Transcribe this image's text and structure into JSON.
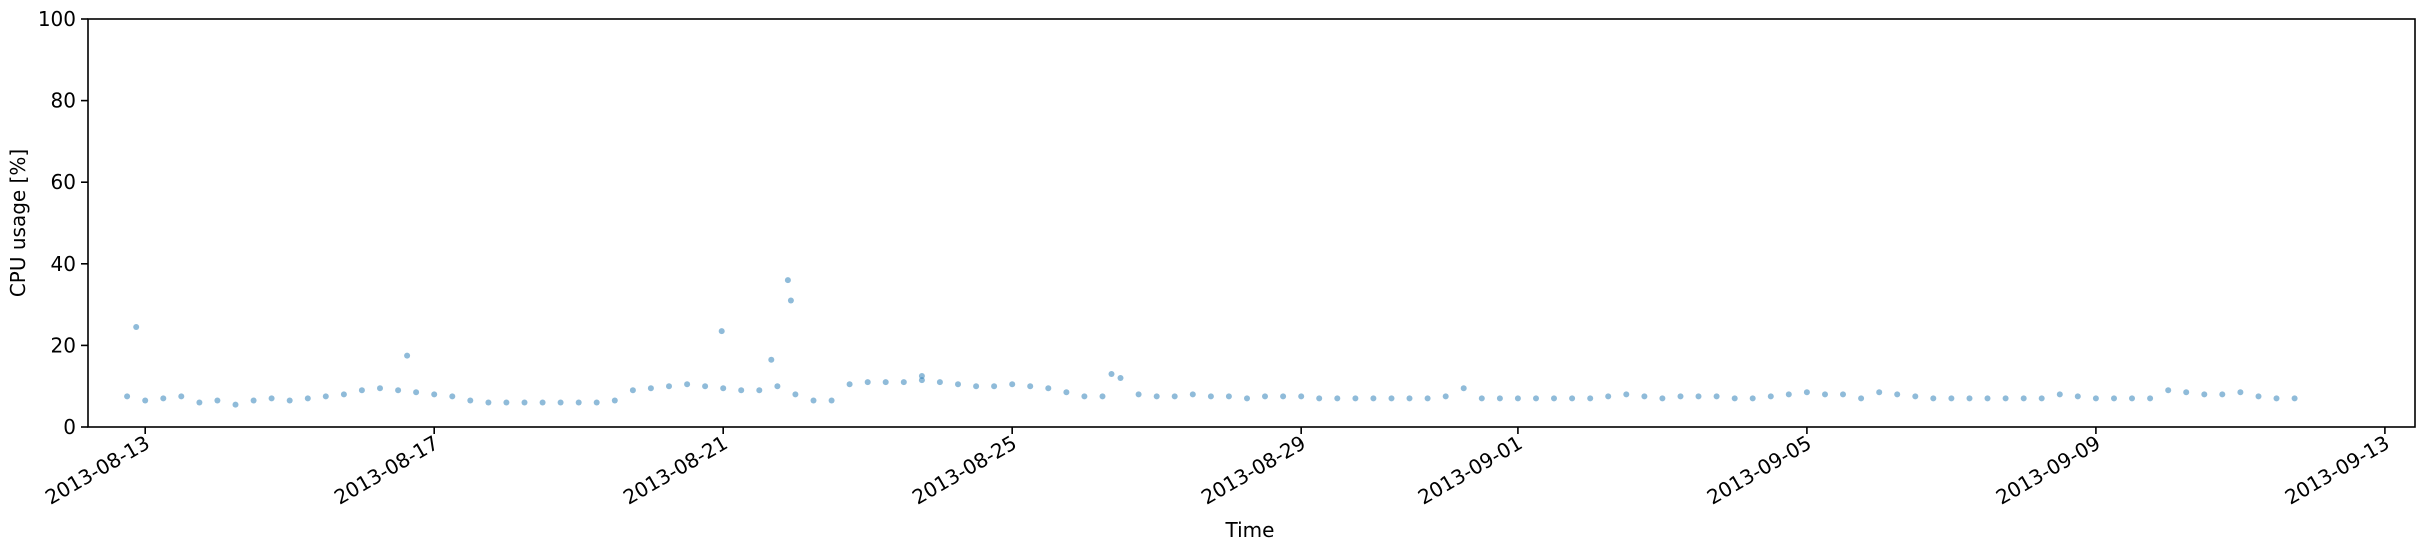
{
  "chart_data": {
    "type": "scatter",
    "title": "",
    "xlabel": "Time",
    "ylabel": "CPU usage [%]",
    "ylim": [
      0,
      100
    ],
    "xlim": [
      "2013-08-12T05:00",
      "2013-09-13T10:00"
    ],
    "grid": false,
    "marker_color": "#1f77b4",
    "marker_alpha": 0.5,
    "y_ticks": [
      0,
      20,
      40,
      60,
      80,
      100
    ],
    "x_ticks": [
      {
        "date": "2013-08-13",
        "label": "2013-08-13"
      },
      {
        "date": "2013-08-17",
        "label": "2013-08-17"
      },
      {
        "date": "2013-08-21",
        "label": "2013-08-21"
      },
      {
        "date": "2013-08-25",
        "label": "2013-08-25"
      },
      {
        "date": "2013-08-29",
        "label": "2013-08-29"
      },
      {
        "date": "2013-09-01",
        "label": "2013-09-01"
      },
      {
        "date": "2013-09-05",
        "label": "2013-09-05"
      },
      {
        "date": "2013-09-09",
        "label": "2013-09-09"
      },
      {
        "date": "2013-09-13",
        "label": "2013-09-13"
      }
    ],
    "series": [
      {
        "x": [
          "2013-08-12T18:00",
          "2013-08-13T00:00",
          "2013-08-13T06:00",
          "2013-08-13T12:00",
          "2013-08-13T18:00",
          "2013-08-14T00:00",
          "2013-08-14T06:00",
          "2013-08-14T12:00",
          "2013-08-14T18:00",
          "2013-08-15T00:00",
          "2013-08-15T06:00",
          "2013-08-15T12:00",
          "2013-08-15T18:00",
          "2013-08-16T00:00",
          "2013-08-16T06:00",
          "2013-08-16T12:00",
          "2013-08-16T18:00",
          "2013-08-17T00:00",
          "2013-08-17T06:00",
          "2013-08-17T12:00",
          "2013-08-17T18:00",
          "2013-08-18T00:00",
          "2013-08-18T06:00",
          "2013-08-18T12:00",
          "2013-08-18T18:00",
          "2013-08-19T00:00",
          "2013-08-19T06:00",
          "2013-08-19T12:00",
          "2013-08-19T18:00",
          "2013-08-20T00:00",
          "2013-08-20T06:00",
          "2013-08-20T12:00",
          "2013-08-20T18:00",
          "2013-08-21T00:00",
          "2013-08-21T06:00",
          "2013-08-21T12:00",
          "2013-08-21T18:00",
          "2013-08-22T00:00",
          "2013-08-22T06:00",
          "2013-08-22T12:00",
          "2013-08-22T18:00",
          "2013-08-23T00:00",
          "2013-08-23T06:00",
          "2013-08-23T12:00",
          "2013-08-23T18:00",
          "2013-08-24T00:00",
          "2013-08-24T06:00",
          "2013-08-24T12:00",
          "2013-08-24T18:00",
          "2013-08-25T00:00",
          "2013-08-25T06:00",
          "2013-08-25T12:00",
          "2013-08-25T18:00",
          "2013-08-26T00:00",
          "2013-08-26T06:00",
          "2013-08-26T12:00",
          "2013-08-26T18:00",
          "2013-08-27T00:00",
          "2013-08-27T06:00",
          "2013-08-27T12:00",
          "2013-08-27T18:00",
          "2013-08-28T00:00",
          "2013-08-28T06:00",
          "2013-08-28T12:00",
          "2013-08-28T18:00",
          "2013-08-29T00:00",
          "2013-08-29T06:00",
          "2013-08-29T12:00",
          "2013-08-29T18:00",
          "2013-08-30T00:00",
          "2013-08-30T06:00",
          "2013-08-30T12:00",
          "2013-08-30T18:00",
          "2013-08-31T00:00",
          "2013-08-31T06:00",
          "2013-08-31T12:00",
          "2013-08-31T18:00",
          "2013-09-01T00:00",
          "2013-09-01T06:00",
          "2013-09-01T12:00",
          "2013-09-01T18:00",
          "2013-09-02T00:00",
          "2013-09-02T06:00",
          "2013-09-02T12:00",
          "2013-09-02T18:00",
          "2013-09-03T00:00",
          "2013-09-03T06:00",
          "2013-09-03T12:00",
          "2013-09-03T18:00",
          "2013-09-04T00:00",
          "2013-09-04T06:00",
          "2013-09-04T12:00",
          "2013-09-04T18:00",
          "2013-09-05T00:00",
          "2013-09-05T06:00",
          "2013-09-05T12:00",
          "2013-09-05T18:00",
          "2013-09-06T00:00",
          "2013-09-06T06:00",
          "2013-09-06T12:00",
          "2013-09-06T18:00",
          "2013-09-07T00:00",
          "2013-09-07T06:00",
          "2013-09-07T12:00",
          "2013-09-07T18:00",
          "2013-09-08T00:00",
          "2013-09-08T06:00",
          "2013-09-08T12:00",
          "2013-09-08T18:00",
          "2013-09-09T00:00",
          "2013-09-09T06:00",
          "2013-09-09T12:00",
          "2013-09-09T18:00",
          "2013-09-10T00:00",
          "2013-09-10T06:00",
          "2013-09-10T12:00",
          "2013-09-10T18:00",
          "2013-09-11T00:00",
          "2013-09-11T06:00",
          "2013-09-11T12:00",
          "2013-09-11T18:00",
          "2013-08-12T21:00",
          "2013-08-20T23:30",
          "2013-08-21T21:30",
          "2013-08-21T22:30",
          "2013-08-21T16:00",
          "2013-08-26T09:00",
          "2013-08-23T18:00",
          "2013-08-16T15:00"
        ],
        "y": [
          7.5,
          6.5,
          7.0,
          7.5,
          6.0,
          6.5,
          5.5,
          6.5,
          7.0,
          6.5,
          7.0,
          7.5,
          8.0,
          9.0,
          9.5,
          9.0,
          8.5,
          8.0,
          7.5,
          6.5,
          6.0,
          6.0,
          6.0,
          6.0,
          6.0,
          6.0,
          6.0,
          6.5,
          9.0,
          9.5,
          10.0,
          10.5,
          10.0,
          9.5,
          9.0,
          9.0,
          10.0,
          8.0,
          6.5,
          6.5,
          10.5,
          11.0,
          11.0,
          11.0,
          11.5,
          11.0,
          10.5,
          10.0,
          10.0,
          10.5,
          10.0,
          9.5,
          8.5,
          7.5,
          7.5,
          12.0,
          8.0,
          7.5,
          7.5,
          8.0,
          7.5,
          7.5,
          7.0,
          7.5,
          7.5,
          7.5,
          7.0,
          7.0,
          7.0,
          7.0,
          7.0,
          7.0,
          7.0,
          7.5,
          9.5,
          7.0,
          7.0,
          7.0,
          7.0,
          7.0,
          7.0,
          7.0,
          7.5,
          8.0,
          7.5,
          7.0,
          7.5,
          7.5,
          7.5,
          7.0,
          7.0,
          7.5,
          8.0,
          8.5,
          8.0,
          8.0,
          7.0,
          8.5,
          8.0,
          7.5,
          7.0,
          7.0,
          7.0,
          7.0,
          7.0,
          7.0,
          7.0,
          8.0,
          7.5,
          7.0,
          7.0,
          7.0,
          7.0,
          9.0,
          8.5,
          8.0,
          8.0,
          8.5,
          7.5,
          7.0,
          7.0,
          24.5,
          23.5,
          36.0,
          31.0,
          16.5,
          13.0,
          12.5,
          17.5
        ]
      }
    ]
  }
}
